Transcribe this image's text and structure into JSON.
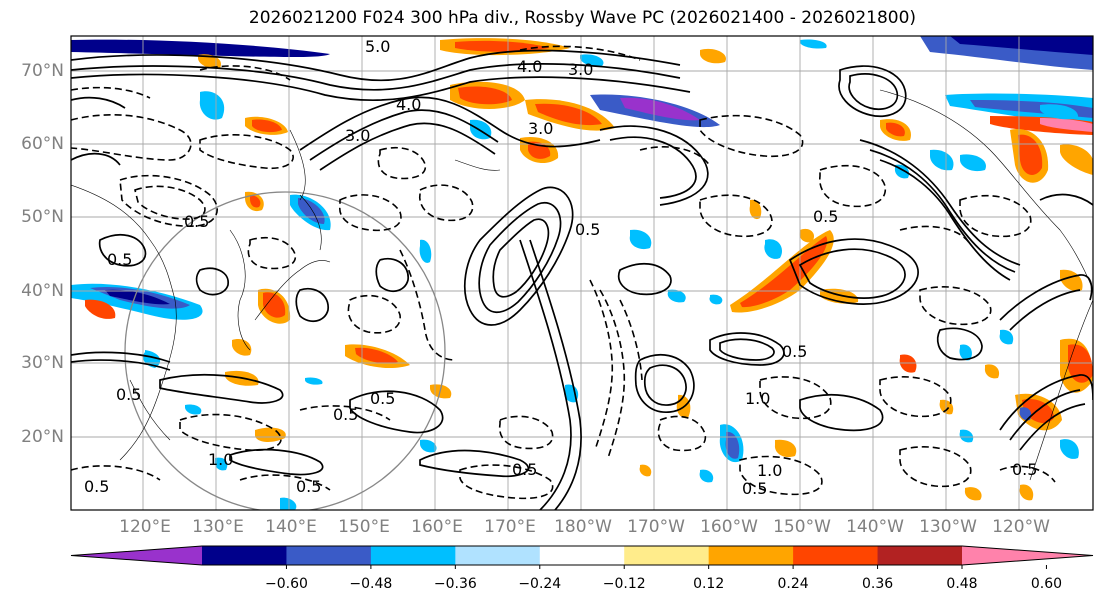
{
  "title": "2026021200 F024 300 hPa div., Rossby Wave PC (2026021400 - 2026021800)",
  "lat_labels": [
    "70°N",
    "60°N",
    "50°N",
    "40°N",
    "30°N",
    "20°N"
  ],
  "lon_labels": [
    "120°E",
    "130°E",
    "140°E",
    "150°E",
    "160°E",
    "170°E",
    "180°W",
    "170°W",
    "160°W",
    "150°W",
    "140°W",
    "130°W",
    "120°W"
  ],
  "colorbar": {
    "ticks": [
      "−0.60",
      "−0.48",
      "−0.36",
      "−0.24",
      "−0.12",
      "0.12",
      "0.24",
      "0.36",
      "0.48",
      "0.60"
    ],
    "colors": [
      "#9932cc",
      "#00008b",
      "#3a5bc7",
      "#00bfff",
      "#b0e2ff",
      "#ffffff",
      "#ffec8b",
      "#ffa500",
      "#ff4500",
      "#b22222",
      "#ff82ab"
    ]
  },
  "contour_labels": [
    "5.0",
    "4.0",
    "3.0",
    "3.0",
    "4.0",
    "3.0",
    "0.5",
    "0.5",
    "0.5",
    "0.5",
    "0.5",
    "1.0",
    "1.0",
    "0.5",
    "0.5",
    "0.5",
    "0.5",
    "0.5",
    "0.5",
    "1.0",
    "0.5",
    "0.5"
  ]
}
